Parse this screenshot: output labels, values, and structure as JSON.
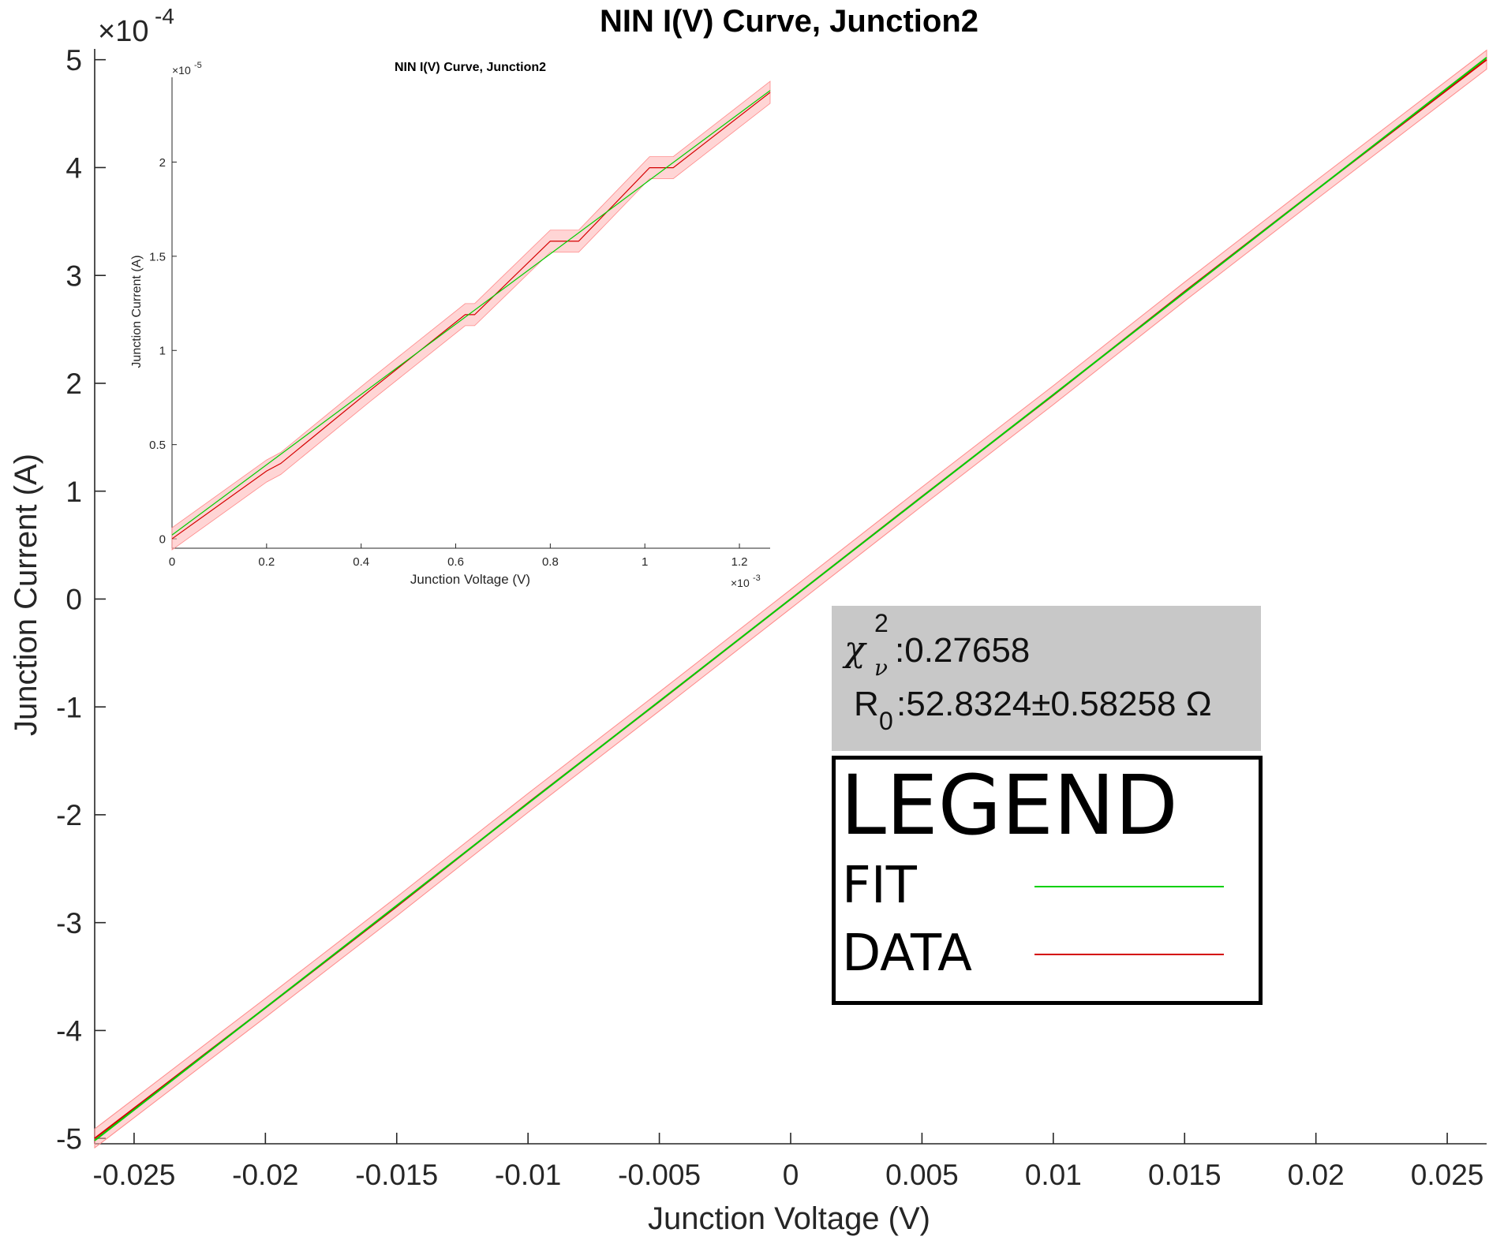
{
  "chart_data": [
    {
      "type": "line",
      "title": "NIN I(V) Curve, Junction2",
      "xlabel": "Junction Voltage (V)",
      "ylabel": "Junction Current (A)",
      "y_exponent_label": "×10",
      "y_exponent_power": "-4",
      "xlim": [
        -0.0265,
        0.0265
      ],
      "ylim": [
        -5.05,
        5.1
      ],
      "xticks": [
        "-0.025",
        "-0.02",
        "-0.015",
        "-0.01",
        "-0.005",
        "0",
        "0.005",
        "0.01",
        "0.015",
        "0.02",
        "0.025"
      ],
      "yticks": [
        "-5",
        "-4",
        "-3",
        "-2",
        "-1",
        "0",
        "1",
        "2",
        "3",
        "4",
        "5"
      ],
      "grid": false,
      "series": [
        {
          "name": "FIT",
          "color": "#00d000",
          "x": [
            -0.0265,
            0.0265
          ],
          "y": [
            -5.02,
            5.02
          ]
        },
        {
          "name": "DATA",
          "color": "#d40000",
          "x": [
            -0.0265,
            -0.02,
            -0.015,
            -0.01,
            -0.005,
            0,
            0.005,
            0.01,
            0.015,
            0.02,
            0.0265
          ],
          "y": [
            -5.0,
            -3.79,
            -2.85,
            -1.89,
            -0.95,
            0.0,
            0.95,
            1.89,
            2.85,
            3.79,
            5.0
          ]
        }
      ],
      "annotations": {
        "chi_symbol": "χ",
        "chi_sup": "2",
        "chi_sub": "ν",
        "chi_value": ":0.27658",
        "r_symbol": "R",
        "r_sub": "0",
        "r_value": ":52.8324±0.58258 Ω"
      },
      "legend": {
        "title": "LEGEND",
        "placement": "lower-right",
        "entries": [
          {
            "label": "FIT",
            "color": "#00d000"
          },
          {
            "label": "DATA",
            "color": "#d40000"
          }
        ]
      }
    },
    {
      "type": "line",
      "title": "NIN I(V) Curve, Junction2",
      "xlabel": "Junction Voltage (V)",
      "ylabel": "Junction Current (A)",
      "x_exponent_label": "×10",
      "x_exponent_power": "-3",
      "y_exponent_label": "×10",
      "y_exponent_power": "-5",
      "xlim": [
        0,
        1.265
      ],
      "ylim": [
        -0.05,
        2.45
      ],
      "xticks": [
        "0",
        "0.2",
        "0.4",
        "0.6",
        "0.8",
        "1",
        "1.2"
      ],
      "yticks": [
        "0",
        "0.5",
        "1",
        "1.5",
        "2"
      ],
      "series": [
        {
          "name": "FIT",
          "color": "#00d000",
          "x": [
            0,
            1.265
          ],
          "y": [
            0.02,
            2.38
          ]
        },
        {
          "name": "DATA",
          "color": "#d40000",
          "x": [
            0,
            0.2,
            0.23,
            0.42,
            0.62,
            0.64,
            0.8,
            0.86,
            1.01,
            1.06,
            1.265
          ],
          "y": [
            0.0,
            0.36,
            0.4,
            0.79,
            1.19,
            1.19,
            1.58,
            1.58,
            1.97,
            1.97,
            2.37
          ]
        }
      ]
    }
  ]
}
